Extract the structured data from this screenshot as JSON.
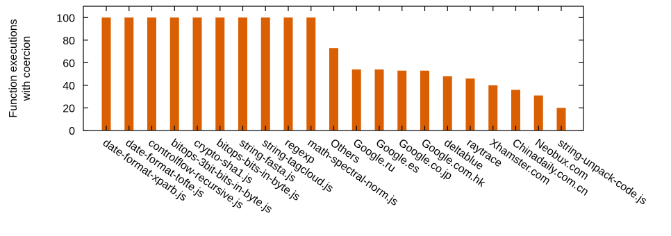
{
  "chart_data": {
    "type": "bar",
    "ylabel_lines": [
      "Function executions",
      "with coercion"
    ],
    "xlabel": "",
    "ylim": [
      0,
      110
    ],
    "yticks": [
      0,
      20,
      40,
      60,
      80,
      100
    ],
    "bar_color": "#d95f02",
    "grid": false,
    "categories": [
      "date-format-xparb.js",
      "date-format-tofte.js",
      "controlflow-recursive.js",
      "bitops-3bit-bits-in-byte.js",
      "crypto-sha1.js",
      "bitops-bits-in-byte.js",
      "string-fasta.js",
      "string-tagcloud.js",
      "regexp",
      "math-spectral-norm.js",
      "Others",
      "Google.ru",
      "Google.es",
      "Google.co.jp",
      "Google.com.hk",
      "deltablue",
      "raytrace",
      "Xhamster.com",
      "Chinadaily.com.cn",
      "Neobux.com",
      "string-unpack-code.js"
    ],
    "values": [
      100,
      100,
      100,
      100,
      100,
      100,
      100,
      100,
      100,
      100,
      73,
      54,
      54,
      53,
      53,
      48,
      46,
      40,
      36,
      31,
      20
    ]
  }
}
